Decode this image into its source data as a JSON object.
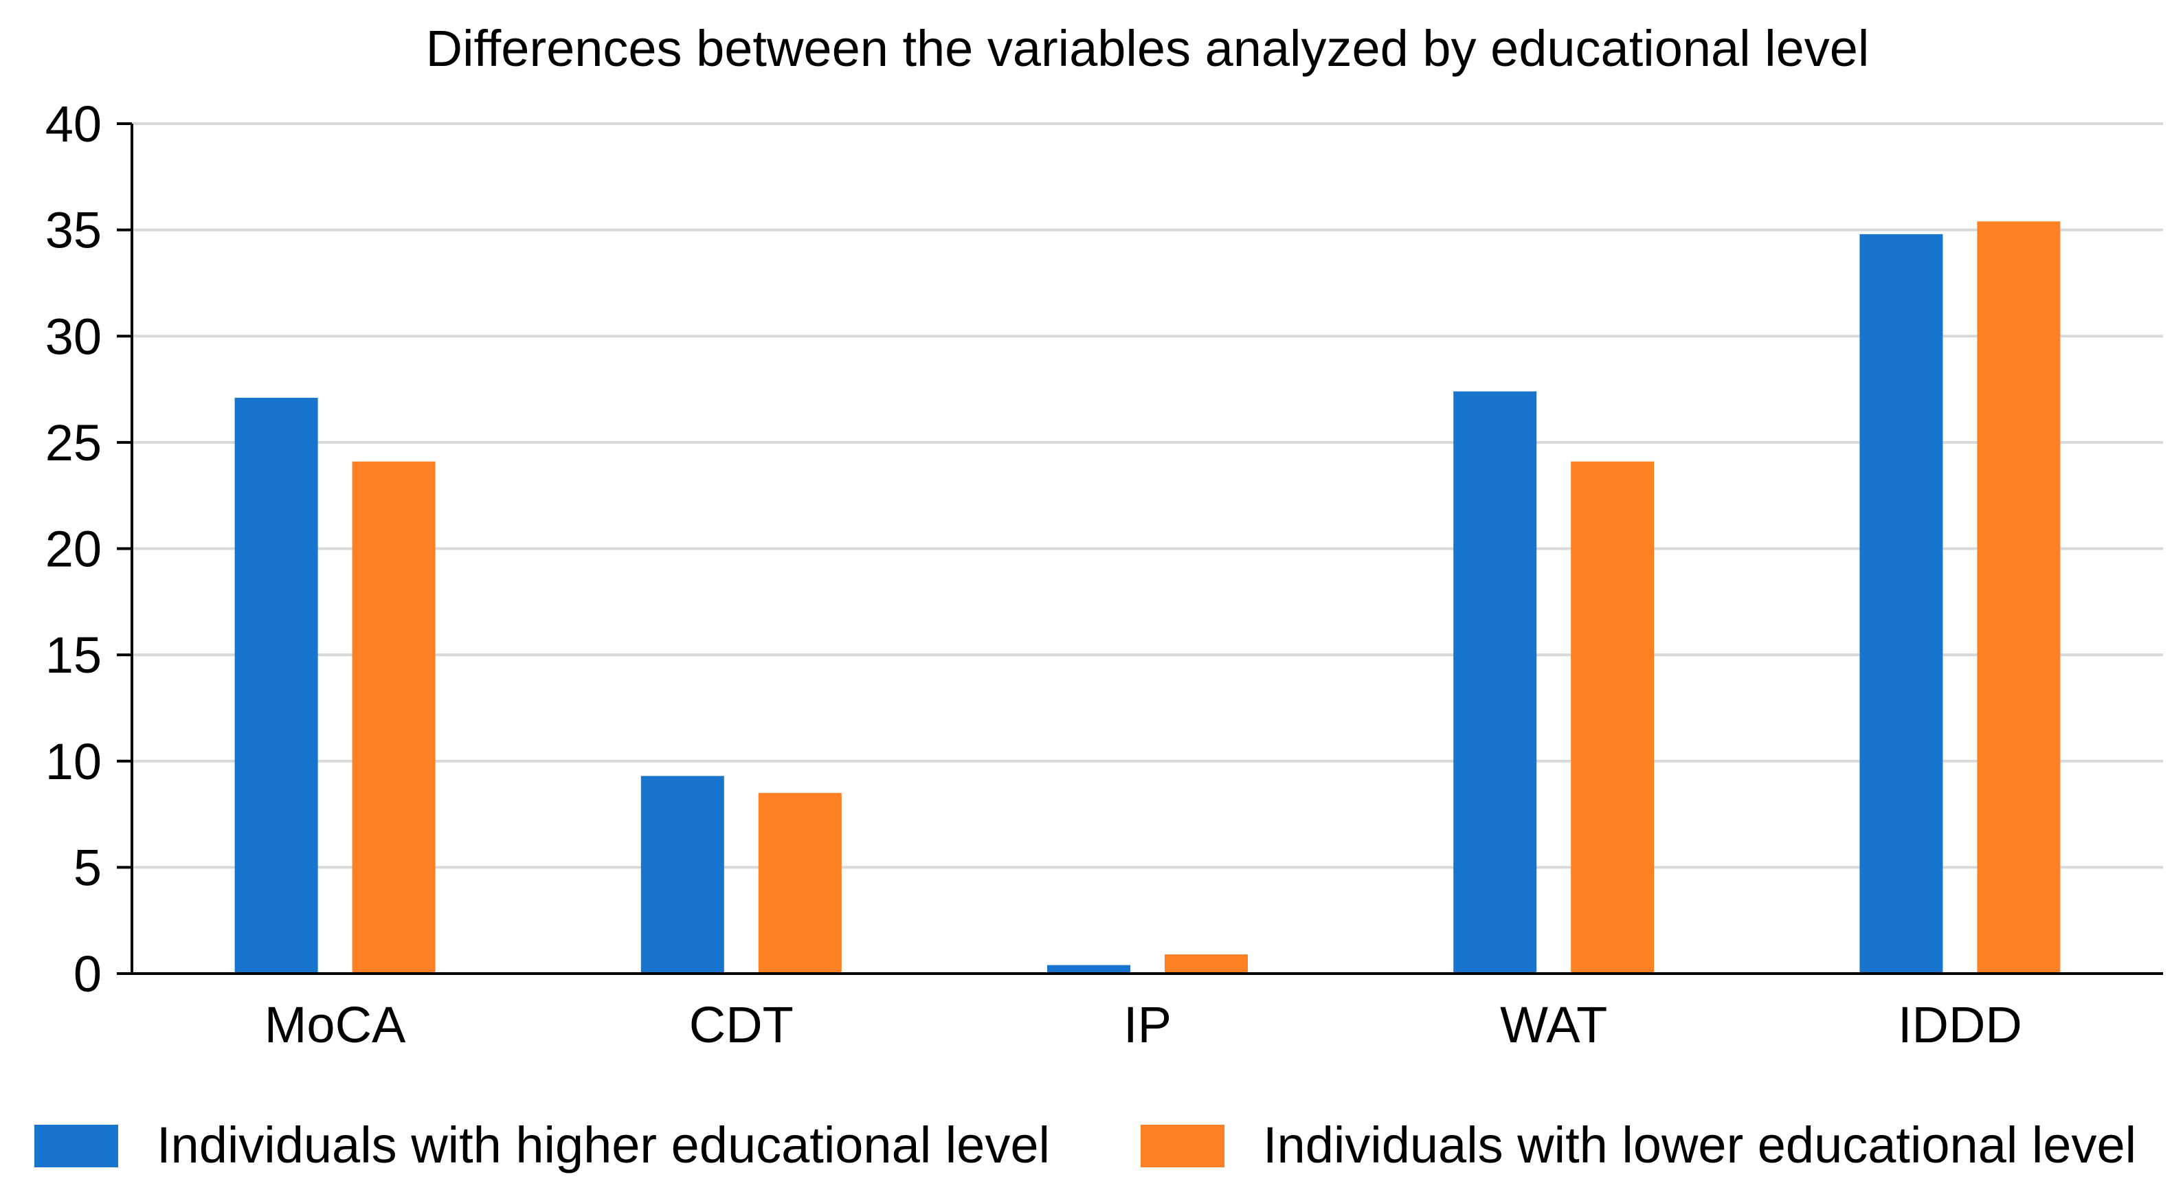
{
  "chart_data": {
    "type": "bar",
    "title": "Differences between the variables analyzed by educational level",
    "xlabel": "",
    "ylabel": "",
    "ylim": [
      0,
      40
    ],
    "yticks": [
      0,
      5,
      10,
      15,
      20,
      25,
      30,
      35,
      40
    ],
    "grid": true,
    "legend_position": "bottom",
    "categories": [
      "MoCA",
      "CDT",
      "IP",
      "WAT",
      "IDDD"
    ],
    "series": [
      {
        "name": "Individuals with higher educational level",
        "color": "#1874CD",
        "values": [
          27.1,
          9.3,
          0.4,
          27.4,
          34.8
        ]
      },
      {
        "name": "Individuals with lower educational level",
        "color": "#FF7F24",
        "values": [
          24.1,
          8.5,
          0.9,
          24.1,
          35.4
        ]
      }
    ]
  }
}
